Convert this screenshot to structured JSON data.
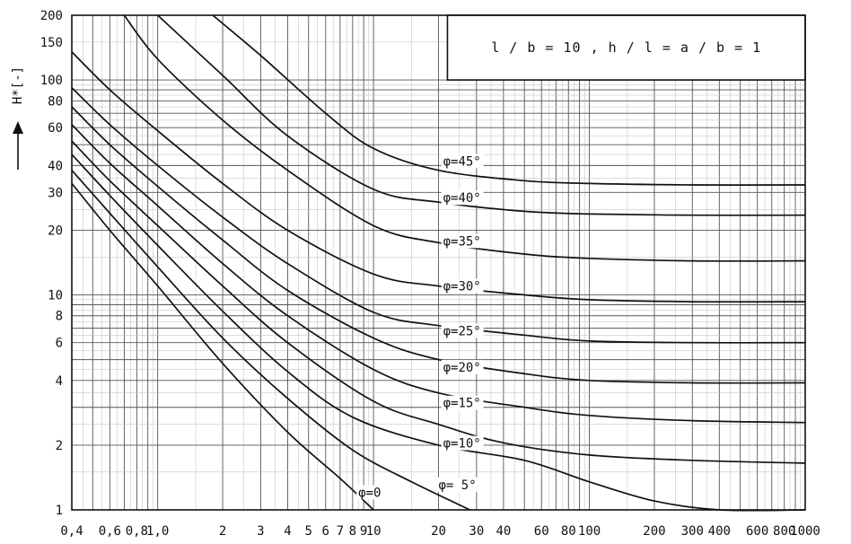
{
  "chart_data": {
    "type": "line",
    "title": "",
    "annotation": "l / b  =  10 ,  h / l  =  a / b  =  1",
    "xlabel": "",
    "ylabel": "H*[-]",
    "xscale": "log",
    "yscale": "log",
    "xlim": [
      0.4,
      1000
    ],
    "ylim": [
      1,
      200
    ],
    "grid": true,
    "legend": "none",
    "x_tick_labels": [
      {
        "v": 0.4,
        "t": "0,4"
      },
      {
        "v": 0.6,
        "t": "0,6"
      },
      {
        "v": 0.8,
        "t": "0,8"
      },
      {
        "v": 1.0,
        "t": "1,0"
      },
      {
        "v": 2,
        "t": "2"
      },
      {
        "v": 3,
        "t": "3"
      },
      {
        "v": 4,
        "t": "4"
      },
      {
        "v": 5,
        "t": "5"
      },
      {
        "v": 6,
        "t": "6"
      },
      {
        "v": 7,
        "t": "7"
      },
      {
        "v": 8,
        "t": "8"
      },
      {
        "v": 9,
        "t": "9"
      },
      {
        "v": 10,
        "t": "10"
      },
      {
        "v": 20,
        "t": "20"
      },
      {
        "v": 30,
        "t": "30"
      },
      {
        "v": 40,
        "t": "40"
      },
      {
        "v": 60,
        "t": "60"
      },
      {
        "v": 80,
        "t": "80"
      },
      {
        "v": 100,
        "t": "100"
      },
      {
        "v": 200,
        "t": "200"
      },
      {
        "v": 300,
        "t": "300"
      },
      {
        "v": 400,
        "t": "400"
      },
      {
        "v": 600,
        "t": "600"
      },
      {
        "v": 800,
        "t": "800"
      },
      {
        "v": 1000,
        "t": "1000"
      }
    ],
    "y_tick_labels": [
      {
        "v": 1,
        "t": "1"
      },
      {
        "v": 2,
        "t": "2"
      },
      {
        "v": 4,
        "t": "4"
      },
      {
        "v": 6,
        "t": "6"
      },
      {
        "v": 8,
        "t": "8"
      },
      {
        "v": 10,
        "t": "10"
      },
      {
        "v": 20,
        "t": "20"
      },
      {
        "v": 30,
        "t": "30"
      },
      {
        "v": 40,
        "t": "40"
      },
      {
        "v": 60,
        "t": "60"
      },
      {
        "v": 80,
        "t": "80"
      },
      {
        "v": 100,
        "t": "100"
      },
      {
        "v": 150,
        "t": "150"
      },
      {
        "v": 200,
        "t": "200"
      }
    ],
    "series": [
      {
        "name": "φ=0",
        "points": [
          [
            0.4,
            33
          ],
          [
            0.6,
            20
          ],
          [
            1,
            11
          ],
          [
            2,
            4.8
          ],
          [
            4,
            2.3
          ],
          [
            7,
            1.4
          ],
          [
            10,
            1.0
          ]
        ]
      },
      {
        "name": "φ= 5°",
        "points": [
          [
            0.4,
            38
          ],
          [
            0.6,
            24
          ],
          [
            1,
            13.5
          ],
          [
            2,
            6.3
          ],
          [
            4,
            3.3
          ],
          [
            8,
            1.9
          ],
          [
            15,
            1.35
          ],
          [
            28,
            1.0
          ]
        ]
      },
      {
        "name": "φ= 10°",
        "points": [
          [
            0.4,
            45
          ],
          [
            0.6,
            29
          ],
          [
            1,
            17
          ],
          [
            2,
            8.4
          ],
          [
            4,
            4.4
          ],
          [
            8,
            2.7
          ],
          [
            20,
            2.0
          ],
          [
            50,
            1.7
          ],
          [
            100,
            1.35
          ],
          [
            200,
            1.1
          ],
          [
            400,
            1.0
          ],
          [
            1000,
            1.0
          ]
        ]
      },
      {
        "name": "φ= 15°",
        "points": [
          [
            0.4,
            52
          ],
          [
            0.6,
            34
          ],
          [
            1,
            21
          ],
          [
            2,
            11
          ],
          [
            4,
            6
          ],
          [
            10,
            3.2
          ],
          [
            20,
            2.5
          ],
          [
            40,
            2.05
          ],
          [
            100,
            1.8
          ],
          [
            300,
            1.7
          ],
          [
            1000,
            1.65
          ]
        ]
      },
      {
        "name": "φ= 20°",
        "points": [
          [
            0.4,
            62
          ],
          [
            0.6,
            41
          ],
          [
            1,
            26
          ],
          [
            2,
            14
          ],
          [
            4,
            8
          ],
          [
            10,
            4.5
          ],
          [
            20,
            3.5
          ],
          [
            50,
            3.0
          ],
          [
            100,
            2.75
          ],
          [
            300,
            2.6
          ],
          [
            1000,
            2.55
          ]
        ]
      },
      {
        "name": "φ= 25°",
        "points": [
          [
            0.4,
            75
          ],
          [
            0.6,
            50
          ],
          [
            1,
            32
          ],
          [
            2,
            18
          ],
          [
            4,
            10.5
          ],
          [
            10,
            6.3
          ],
          [
            20,
            5.0
          ],
          [
            50,
            4.3
          ],
          [
            100,
            4.0
          ],
          [
            300,
            3.9
          ],
          [
            1000,
            3.9
          ]
        ]
      },
      {
        "name": "φ= 30°",
        "points": [
          [
            0.4,
            92
          ],
          [
            0.6,
            62
          ],
          [
            1,
            40
          ],
          [
            2,
            23
          ],
          [
            4,
            14
          ],
          [
            10,
            8.3
          ],
          [
            20,
            7.2
          ],
          [
            50,
            6.5
          ],
          [
            100,
            6.1
          ],
          [
            300,
            6.0
          ],
          [
            1000,
            6.0
          ]
        ]
      },
      {
        "name": "φ=30°",
        "points": [
          [
            0.4,
            135
          ],
          [
            0.6,
            90
          ],
          [
            1,
            58
          ],
          [
            2,
            33
          ],
          [
            4,
            20
          ],
          [
            10,
            12.5
          ],
          [
            20,
            11
          ],
          [
            50,
            10
          ],
          [
            100,
            9.5
          ],
          [
            300,
            9.3
          ],
          [
            1000,
            9.3
          ]
        ]
      },
      {
        "name": "φ= 35°",
        "points": [
          [
            0.7,
            200
          ],
          [
            1,
            125
          ],
          [
            2,
            65
          ],
          [
            4,
            38
          ],
          [
            10,
            21
          ],
          [
            20,
            17.5
          ],
          [
            50,
            15.5
          ],
          [
            100,
            14.8
          ],
          [
            300,
            14.4
          ],
          [
            1000,
            14.4
          ]
        ]
      },
      {
        "name": "φ=40°",
        "points": [
          [
            1.0,
            200
          ],
          [
            2,
            105
          ],
          [
            4,
            55
          ],
          [
            10,
            31
          ],
          [
            20,
            27
          ],
          [
            50,
            24.5
          ],
          [
            100,
            23.8
          ],
          [
            300,
            23.5
          ],
          [
            1000,
            23.5
          ]
        ]
      },
      {
        "name": "φ=45°",
        "points": [
          [
            1.8,
            200
          ],
          [
            3,
            130
          ],
          [
            6,
            70
          ],
          [
            10,
            48
          ],
          [
            20,
            38
          ],
          [
            50,
            34
          ],
          [
            100,
            33
          ],
          [
            300,
            32.5
          ],
          [
            1000,
            32.5
          ]
        ]
      }
    ],
    "curve_labels": [
      {
        "text": "φ=45°",
        "x": 21,
        "y": 40
      },
      {
        "text": "φ=40°",
        "x": 21,
        "y": 27
      },
      {
        "text": "φ=35°",
        "x": 21,
        "y": 17
      },
      {
        "text": "φ=30°",
        "x": 21,
        "y": 10.5
      },
      {
        "text": "φ=25°",
        "x": 21,
        "y": 6.5
      },
      {
        "text": "φ=20°",
        "x": 21,
        "y": 4.4
      },
      {
        "text": "φ=15°",
        "x": 21,
        "y": 3.0
      },
      {
        "text": "φ=10°",
        "x": 21,
        "y": 1.95
      },
      {
        "text": "φ= 5°",
        "x": 20,
        "y": 1.25
      },
      {
        "text": "φ=0",
        "x": 8.5,
        "y": 1.15
      }
    ]
  }
}
